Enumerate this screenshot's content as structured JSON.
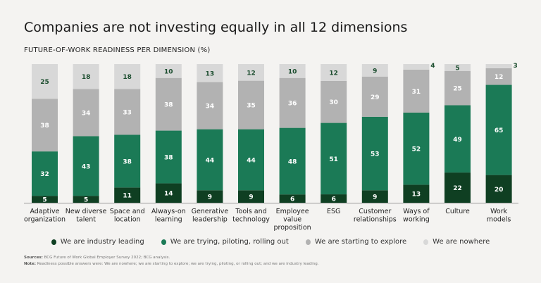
{
  "title": "Companies are not investing equally in all 12 dimensions",
  "chart_data": {
    "type": "bar",
    "stacked": true,
    "title": "FUTURE-OF-WORK READINESS PER DIMENSION (%)",
    "categories": [
      [
        "Adaptive",
        "organization"
      ],
      [
        "New diverse",
        "talent"
      ],
      [
        "Space and",
        "location"
      ],
      [
        "Always-on",
        "learning"
      ],
      [
        "Generative",
        "leadership"
      ],
      [
        "Tools and",
        "technology"
      ],
      [
        "Employee",
        "value",
        "proposition"
      ],
      [
        "ESG"
      ],
      [
        "Customer",
        "relationships"
      ],
      [
        "Ways of",
        "working"
      ],
      [
        "Culture"
      ],
      [
        "Work",
        "models"
      ]
    ],
    "series": [
      {
        "name": "We are industry leading",
        "color": "#0f3f22",
        "label_color": "#ffffff",
        "values": [
          5,
          5,
          11,
          14,
          9,
          9,
          6,
          6,
          9,
          13,
          22,
          20
        ]
      },
      {
        "name": "We are trying, piloting, rolling out",
        "color": "#1b7a56",
        "label_color": "#ffffff",
        "values": [
          32,
          43,
          38,
          38,
          44,
          44,
          48,
          51,
          53,
          52,
          49,
          65
        ]
      },
      {
        "name": "We are starting to explore",
        "color": "#b2b2b2",
        "label_color": "#ffffff",
        "values": [
          38,
          34,
          33,
          38,
          34,
          35,
          36,
          30,
          29,
          31,
          25,
          12
        ]
      },
      {
        "name": "We are nowhere",
        "color": "#d8d8d8",
        "label_color": "#1b4d2e",
        "values": [
          25,
          18,
          18,
          10,
          13,
          12,
          10,
          12,
          9,
          4,
          5,
          3
        ]
      }
    ],
    "legend_position": "bottom",
    "grid": false
  },
  "notes": {
    "sources_label": "Sources:",
    "sources_text": "BCG Future of Work Global Employer Survey 2022; BCG analysis.",
    "note_label": "Note:",
    "note_text": "Readiness possible answers were: We are nowhere; we are starting to explore; we are trying, piloting, or rolling out; and we are industry leading."
  }
}
